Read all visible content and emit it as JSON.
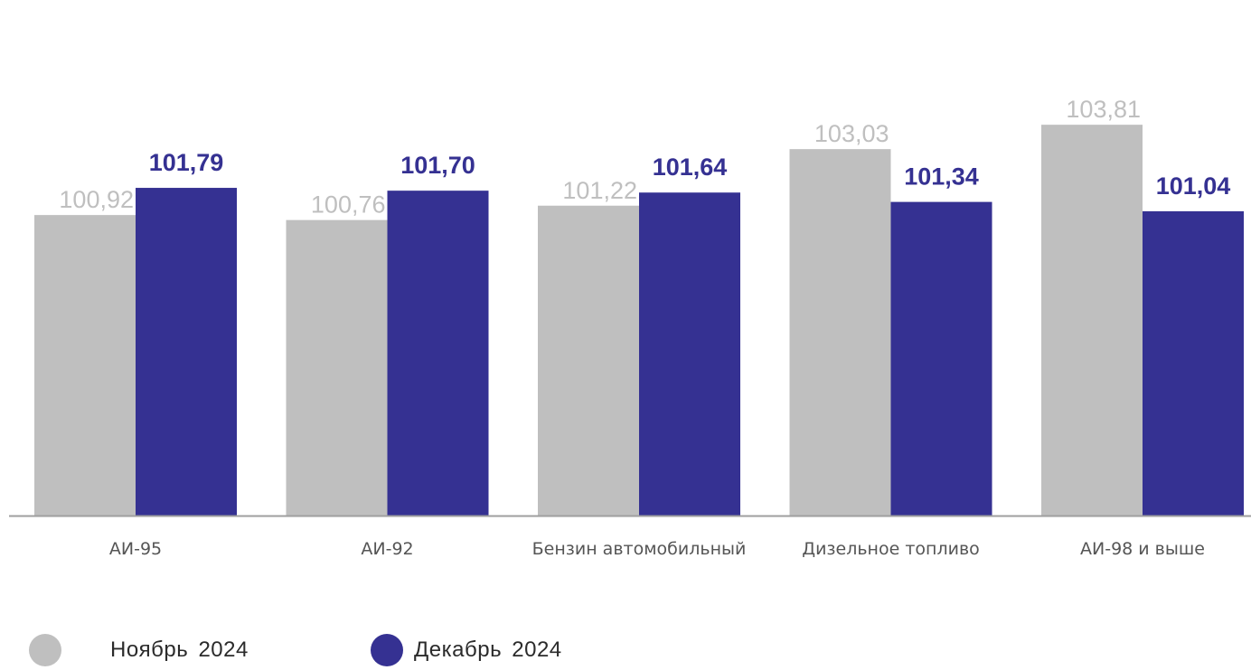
{
  "chart_data": {
    "type": "bar",
    "categories": [
      "АИ-95",
      "АИ-92",
      "Бензин автомобильный",
      "Дизельное топливо",
      "АИ-98 и выше"
    ],
    "series": [
      {
        "name": "Ноябрь  2024",
        "values": [
          100.92,
          100.76,
          101.22,
          103.03,
          103.81
        ],
        "labels": [
          "100,92",
          "100,76",
          "101,22",
          "103,03",
          "103,81"
        ],
        "color": "#bfbfbf",
        "label_color": "#bfbfbf"
      },
      {
        "name": "Декабрь  2024",
        "values": [
          101.79,
          101.7,
          101.64,
          101.34,
          101.04
        ],
        "labels": [
          "101,79",
          "101,70",
          "101,64",
          "101,34",
          "101,04"
        ],
        "color": "#353192",
        "label_color": "#353192"
      }
    ],
    "title": "",
    "xlabel": "",
    "ylabel": "",
    "ylim": [
      91.3,
      104.5
    ],
    "grid": false,
    "legend_position": "bottom-left",
    "axis_color": "#9f9f9f",
    "category_label_color": "#555555"
  },
  "legend": {
    "items": [
      {
        "label": "Ноябрь  2024",
        "color": "#bfbfbf"
      },
      {
        "label": "Декабрь  2024",
        "color": "#353192"
      }
    ]
  }
}
